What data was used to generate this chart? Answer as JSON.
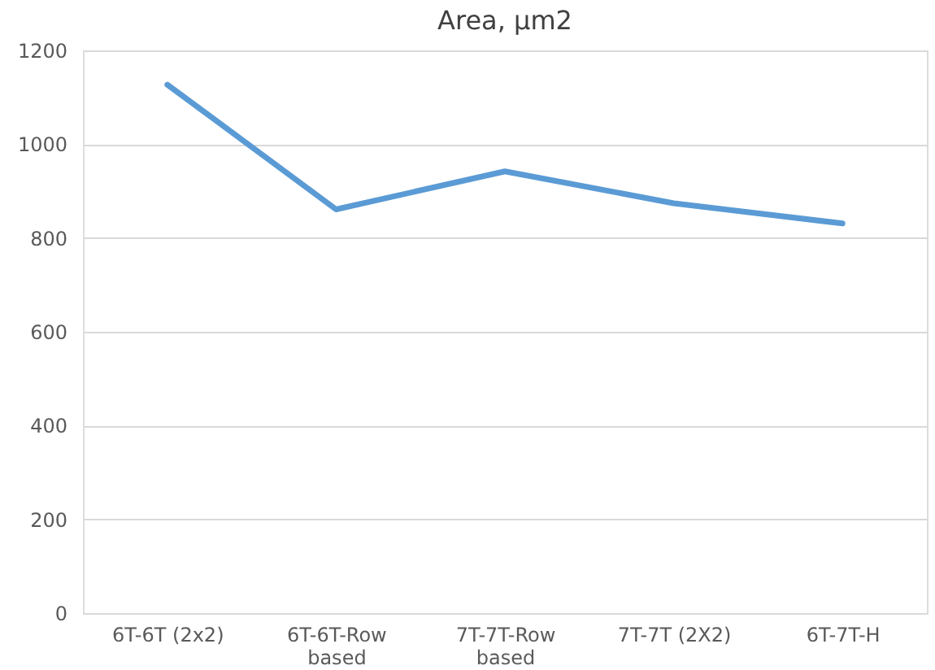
{
  "chart_data": {
    "type": "line",
    "title": "Area, µm2",
    "categories": [
      "6T-6T (2x2)",
      "6T-6T-Row based",
      "7T-7T-Row based",
      "7T-7T (2X2)",
      "6T-7T-H"
    ],
    "series": [
      {
        "color": "#5b9bd5",
        "values": [
          1127,
          861,
          942,
          874,
          831
        ]
      }
    ],
    "ylim": [
      0,
      1200
    ],
    "yticks": [
      0,
      200,
      400,
      600,
      800,
      1000,
      1200
    ],
    "grid": "y",
    "marker": "none",
    "line_style": "solid"
  }
}
